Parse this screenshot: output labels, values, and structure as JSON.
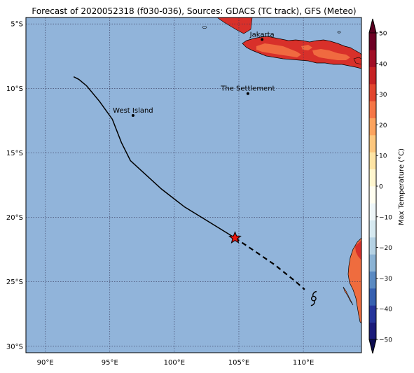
{
  "title": "Forecast of 2020052318 (f030-036), Sources: GDACS (TC track), GFS (Meteo)",
  "map": {
    "lon_range": [
      88.5,
      114.5
    ],
    "lat_range": [
      -30.5,
      -4.5
    ],
    "ocean_color": "#91b4da",
    "grid": true,
    "lon_ticks": [
      {
        "value": 90,
        "label": "90°E"
      },
      {
        "value": 95,
        "label": "95°E"
      },
      {
        "value": 100,
        "label": "100°E"
      },
      {
        "value": 105,
        "label": "105°E"
      },
      {
        "value": 110,
        "label": "110°E"
      }
    ],
    "lat_ticks": [
      {
        "value": -5,
        "label": "5°S"
      },
      {
        "value": -10,
        "label": "10°S"
      },
      {
        "value": -15,
        "label": "15°S"
      },
      {
        "value": -20,
        "label": "20°S"
      },
      {
        "value": -25,
        "label": "25°S"
      },
      {
        "value": -30,
        "label": "30°S"
      }
    ]
  },
  "places": [
    {
      "name": "Jakarta",
      "lon": 106.8,
      "lat": -6.2
    },
    {
      "name": "The Settlement",
      "lon": 105.7,
      "lat": -10.4
    },
    {
      "name": "West Island",
      "lon": 96.8,
      "lat": -12.1
    }
  ],
  "track": {
    "past": [
      [
        92.2,
        -9.1
      ],
      [
        92.6,
        -9.3
      ],
      [
        93.2,
        -9.8
      ],
      [
        94.2,
        -11.0
      ],
      [
        95.2,
        -12.4
      ],
      [
        95.9,
        -14.2
      ],
      [
        96.6,
        -15.6
      ],
      [
        97.8,
        -16.7
      ],
      [
        99.0,
        -17.8
      ],
      [
        100.8,
        -19.2
      ],
      [
        102.6,
        -20.3
      ],
      [
        104.7,
        -21.6
      ]
    ],
    "forecast": [
      [
        104.7,
        -21.6
      ],
      [
        106.2,
        -22.6
      ],
      [
        107.8,
        -23.7
      ],
      [
        109.3,
        -24.9
      ],
      [
        110.1,
        -25.6
      ]
    ],
    "current_position": {
      "lon": 104.7,
      "lat": -21.6,
      "marker": "red-star"
    },
    "cyclone_position": {
      "lon": 110.8,
      "lat": -26.3,
      "icon": "cyclone-symbol"
    }
  },
  "colorbar": {
    "label": "Max Temperature (°C)",
    "ticks": [
      "50",
      "40",
      "30",
      "20",
      "10",
      "0",
      "−10",
      "−20",
      "−30",
      "−40",
      "−50"
    ],
    "range": [
      -50,
      50
    ],
    "step": 5,
    "colors": [
      "#1b1b7a",
      "#25349a",
      "#3660b0",
      "#5a8ac2",
      "#8bb3d4",
      "#b5d2e4",
      "#d6e9f0",
      "#eef6f8",
      "#fffef0",
      "#fff6cf",
      "#fee4a4",
      "#fdc77e",
      "#fca35e",
      "#f57646",
      "#e2462f",
      "#c62224",
      "#a10e26",
      "#6e0024"
    ],
    "under_color": "#0c0c50",
    "over_color": "#5a0020"
  },
  "land_colors": {
    "java_main": "#d8302a",
    "java_hot": "#f06a40",
    "australia_main": "#ef6c3e",
    "australia_hot": "#d8302a"
  }
}
